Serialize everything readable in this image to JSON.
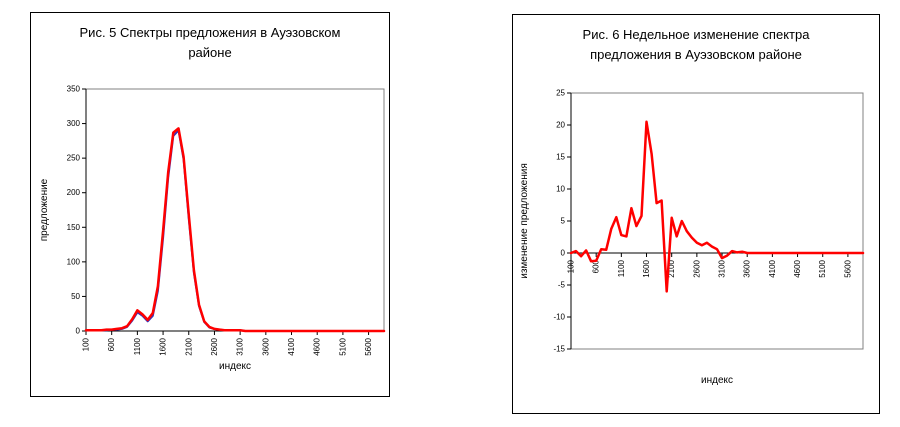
{
  "accent_colors": {
    "series_red": "#FF0000",
    "series_blue": "#3333BB",
    "plot_border": "#808080",
    "axis": "#000000"
  },
  "chart_data": [
    {
      "type": "line",
      "title": "Рис. 5 Спектры предложения в Ауэзовском районе",
      "xlabel": "индекс",
      "ylabel": "предложение",
      "xlim": [
        100,
        5900
      ],
      "ylim": [
        0,
        350
      ],
      "x_start": 100,
      "x_step": 100,
      "yticks": [
        0,
        50,
        100,
        150,
        200,
        250,
        300,
        350
      ],
      "x_tick_labels": [
        "100",
        "600",
        "1100",
        "1600",
        "2100",
        "2600",
        "3100",
        "3600",
        "4100",
        "4600",
        "5100",
        "5600"
      ],
      "grid": false,
      "legend": "none",
      "series": [
        {
          "name": "supply-prev-week",
          "color": "#3333BB",
          "width": 2,
          "values": [
            1,
            1,
            1,
            1,
            1,
            2,
            2,
            3,
            6,
            15,
            27,
            22,
            14,
            22,
            58,
            135,
            222,
            282,
            290,
            248,
            162,
            84,
            36,
            13,
            5,
            3,
            2,
            1,
            1,
            1,
            1,
            0,
            0,
            0,
            0,
            0,
            0,
            0,
            0,
            0,
            0,
            0,
            0,
            0,
            0,
            0,
            0,
            0,
            0,
            0,
            0,
            0,
            0,
            0,
            0,
            0,
            0,
            0,
            0
          ]
        },
        {
          "name": "supply-current-week",
          "color": "#FF0000",
          "width": 2.5,
          "values": [
            1,
            1,
            1,
            1,
            2,
            2,
            3,
            4,
            7,
            17,
            30,
            24,
            16,
            26,
            65,
            145,
            230,
            287,
            293,
            252,
            168,
            88,
            38,
            14,
            6,
            3,
            2,
            1,
            1,
            1,
            1,
            0,
            0,
            0,
            0,
            0,
            0,
            0,
            0,
            0,
            0,
            0,
            0,
            0,
            0,
            0,
            0,
            0,
            0,
            0,
            0,
            0,
            0,
            0,
            0,
            0,
            0,
            0,
            0
          ]
        }
      ]
    },
    {
      "type": "line",
      "title": "Рис. 6 Недельное изменение спектра предложения в Ауэзовском районе",
      "xlabel": "индекс",
      "ylabel": "изменение предложения",
      "xlim": [
        100,
        5900
      ],
      "ylim": [
        -15,
        25
      ],
      "x_start": 100,
      "x_step": 100,
      "yticks": [
        -15,
        -10,
        -5,
        0,
        5,
        10,
        15,
        20,
        25
      ],
      "x_tick_labels": [
        "100",
        "600",
        "1100",
        "1600",
        "2100",
        "2600",
        "3100",
        "3600",
        "4100",
        "4600",
        "5100",
        "5600"
      ],
      "grid": false,
      "legend": "none",
      "series": [
        {
          "name": "weekly-change",
          "color": "#FF0000",
          "width": 2.5,
          "values": [
            0,
            0.3,
            -0.5,
            0.4,
            -1.3,
            -1.2,
            0.6,
            0.5,
            3.8,
            5.6,
            2.8,
            2.6,
            7,
            4.2,
            5.8,
            20.5,
            15.5,
            7.8,
            8.2,
            -6,
            5.5,
            2.6,
            5,
            3.4,
            2.4,
            1.6,
            1.2,
            1.6,
            1,
            0.6,
            -0.8,
            -0.4,
            0.3,
            0.1,
            0.2,
            0,
            0,
            0,
            0,
            0,
            0,
            0,
            0,
            0,
            0,
            0,
            0,
            0,
            0,
            0,
            0,
            0,
            0,
            0,
            0,
            0,
            0,
            0,
            0
          ]
        }
      ]
    }
  ]
}
